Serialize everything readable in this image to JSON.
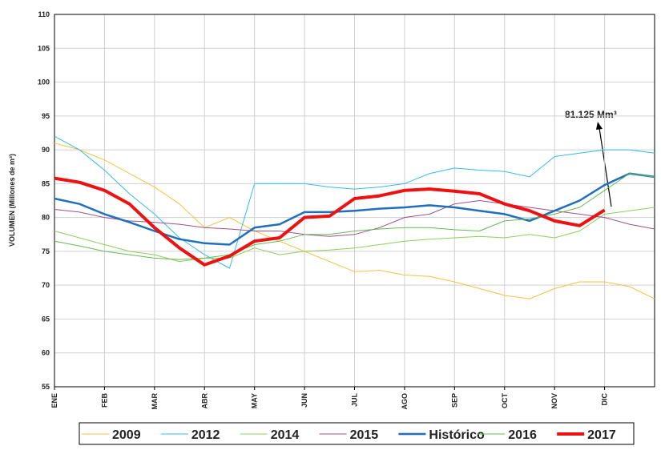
{
  "chart_data": {
    "type": "line",
    "y_label": "VOLUMEN (Millones de m³)",
    "annotation": "81.125 Mm³",
    "categories": [
      "ENE",
      null,
      "FEB",
      null,
      "MAR",
      null,
      "ABR",
      null,
      "MAY",
      null,
      "JUN",
      null,
      "JUL",
      null,
      "AGO",
      null,
      "SEP",
      null,
      "OCT",
      null,
      "NOV",
      null,
      "DIC",
      null,
      null
    ],
    "ylim": [
      55,
      110
    ],
    "yticks": [
      55,
      60,
      65,
      70,
      75,
      80,
      85,
      90,
      95,
      100,
      105,
      110
    ],
    "grid": true,
    "series": [
      {
        "name": "2009",
        "color": "#f5c242",
        "line_width": 1,
        "values": [
          91,
          90,
          88.5,
          86.5,
          84.5,
          82,
          78.5,
          80,
          78,
          76.5,
          75,
          73.5,
          72,
          72.2,
          71.5,
          71.3,
          70.5,
          69.5,
          68.5,
          68,
          69.5,
          70.5,
          70.5,
          69.8,
          68
        ]
      },
      {
        "name": "2012",
        "color": "#33bbee",
        "line_width": 1,
        "values": [
          92,
          90,
          87,
          83.5,
          80.5,
          77,
          74.5,
          72.5,
          85,
          85,
          85,
          84.5,
          84.2,
          84.5,
          85,
          86.5,
          87.3,
          87,
          86.8,
          86,
          89,
          89.5,
          90,
          90,
          89.5
        ]
      },
      {
        "name": "2014",
        "color": "#8ccf5a",
        "line_width": 1,
        "values": [
          78,
          77,
          76,
          75,
          74.5,
          73.5,
          74,
          74,
          75.5,
          74.5,
          75,
          75.2,
          75.5,
          76,
          76.5,
          76.8,
          77,
          77.2,
          77,
          77.5,
          77,
          78,
          80.5,
          81,
          81.5
        ]
      },
      {
        "name": "2015",
        "color": "#a0508a",
        "line_width": 1,
        "values": [
          81.2,
          80.8,
          80,
          79.5,
          79.3,
          79,
          78.5,
          78.3,
          78,
          78,
          77.5,
          77.2,
          77.5,
          78.5,
          80,
          80.5,
          82,
          82.5,
          82,
          81.5,
          81,
          80.5,
          80,
          79,
          78.3
        ]
      },
      {
        "name": "Histórico",
        "color": "#1f6fbf",
        "line_width": 2.5,
        "values": [
          82.8,
          82,
          80.5,
          79.3,
          78,
          76.8,
          76.2,
          76,
          78.5,
          79,
          80.8,
          80.8,
          81,
          81.3,
          81.5,
          81.8,
          81.5,
          81,
          80.5,
          79.5,
          81,
          82.5,
          84.8,
          86.5,
          86
        ]
      },
      {
        "name": "2016",
        "color": "#66bb55",
        "line_width": 1,
        "values": [
          76.5,
          75.8,
          75,
          74.5,
          74,
          73.8,
          74,
          74.5,
          76,
          76.5,
          77.5,
          77.5,
          78,
          78.3,
          78.5,
          78.5,
          78.2,
          78,
          79.5,
          79.8,
          80.5,
          81.5,
          84,
          86.5,
          86
        ]
      },
      {
        "name": "2017",
        "color": "#ee1111",
        "line_width": 4,
        "values": [
          85.8,
          85.2,
          84,
          82,
          78.5,
          75.5,
          73,
          74.3,
          76.5,
          77,
          80,
          80.2,
          82.8,
          83.2,
          84,
          84.2,
          83.9,
          83.5,
          82,
          81,
          79.5,
          78.8,
          81.1,
          null,
          null
        ]
      }
    ]
  }
}
